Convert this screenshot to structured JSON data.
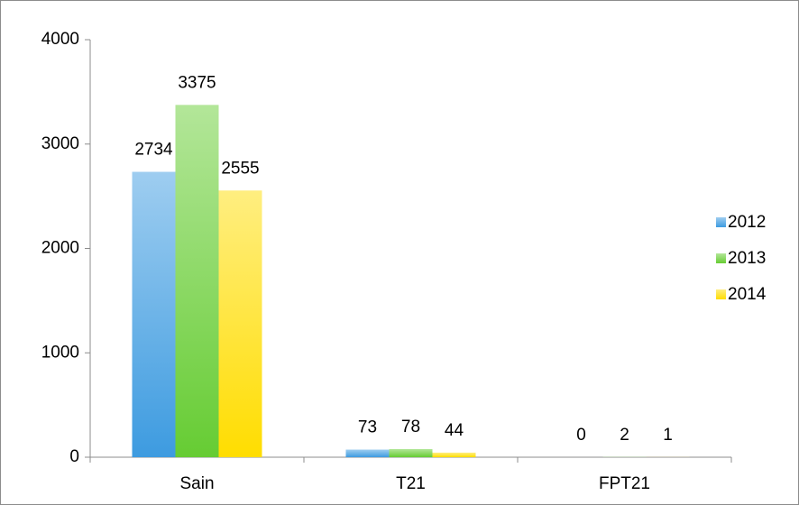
{
  "chart_data": {
    "type": "bar",
    "categories": [
      "Sain",
      "T21",
      "FPT21"
    ],
    "series": [
      {
        "name": "2012",
        "color": "#3d9be0",
        "values": [
          2734,
          73,
          0
        ]
      },
      {
        "name": "2013",
        "color": "#66cc33",
        "values": [
          3375,
          78,
          2
        ]
      },
      {
        "name": "2014",
        "color": "#ffdd00",
        "values": [
          2555,
          44,
          1
        ]
      }
    ],
    "ylim": [
      0,
      4000
    ],
    "yticks": [
      0,
      1000,
      2000,
      3000,
      4000
    ],
    "grid": false,
    "legend": "right"
  }
}
